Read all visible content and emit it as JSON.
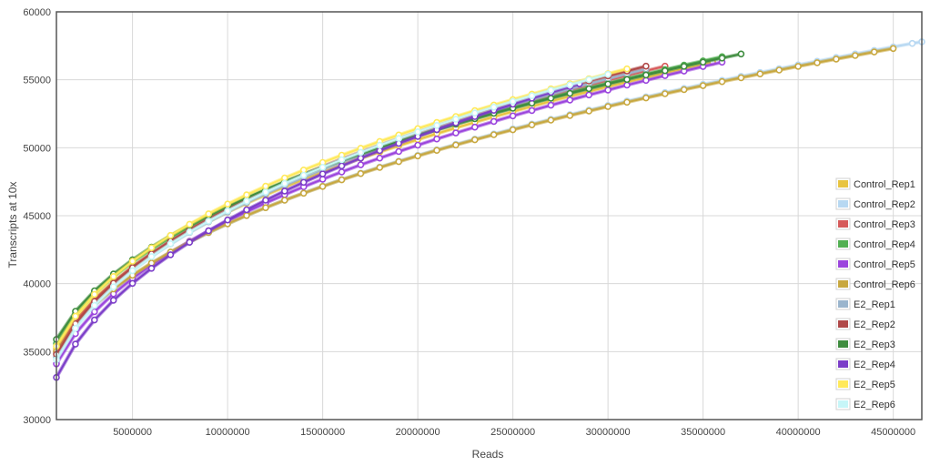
{
  "chart_data": {
    "type": "line",
    "xlabel": "Reads",
    "ylabel": "Transcripts at 10x",
    "xlim": [
      1000000,
      46500000
    ],
    "ylim": [
      30000,
      60000
    ],
    "x_ticks": [
      5000000,
      10000000,
      15000000,
      20000000,
      25000000,
      30000000,
      35000000,
      40000000,
      45000000
    ],
    "y_ticks": [
      30000,
      35000,
      40000,
      45000,
      50000,
      55000,
      60000
    ],
    "x_tick_labels": [
      "5000000",
      "10000000",
      "15000000",
      "20000000",
      "25000000",
      "30000000",
      "35000000",
      "40000000",
      "45000000"
    ],
    "y_tick_labels": [
      "30000",
      "35000",
      "40000",
      "45000",
      "50000",
      "55000",
      "60000"
    ],
    "grid": true,
    "legend_position": "right",
    "series": [
      {
        "name": "Control_Rep1",
        "color": "#e8c440",
        "x_end": 35500000,
        "y_first": 35200,
        "y_end": 56300
      },
      {
        "name": "Control_Rep2",
        "color": "#b7d8f2",
        "x_end": 46500000,
        "y_first": 34900,
        "y_end": 57800
      },
      {
        "name": "Control_Rep3",
        "color": "#d65a5a",
        "x_end": 33000000,
        "y_first": 35000,
        "y_end": 56000
      },
      {
        "name": "Control_Rep4",
        "color": "#52b052",
        "x_end": 36000000,
        "y_first": 35600,
        "y_end": 56700
      },
      {
        "name": "Control_Rep5",
        "color": "#9b45dd",
        "x_end": 36000000,
        "y_first": 34100,
        "y_end": 56300
      },
      {
        "name": "Control_Rep6",
        "color": "#c8a840",
        "x_end": 45000000,
        "y_first": 35000,
        "y_end": 57300
      },
      {
        "name": "E2_Rep1",
        "color": "#9ab5cd",
        "x_end": 32000000,
        "y_first": 34600,
        "y_end": 55800
      },
      {
        "name": "E2_Rep2",
        "color": "#b04848",
        "x_end": 32000000,
        "y_first": 34800,
        "y_end": 56000
      },
      {
        "name": "E2_Rep3",
        "color": "#3e8c3e",
        "x_end": 37000000,
        "y_first": 35900,
        "y_end": 56900
      },
      {
        "name": "E2_Rep4",
        "color": "#7b3dc8",
        "x_end": 28500000,
        "y_first": 33100,
        "y_end": 54700
      },
      {
        "name": "E2_Rep5",
        "color": "#ffe95a",
        "x_end": 31000000,
        "y_first": 35400,
        "y_end": 55800
      },
      {
        "name": "E2_Rep6",
        "color": "#c6f6f8",
        "x_end": 30000000,
        "y_first": 34400,
        "y_end": 55400
      }
    ],
    "grid_color": "#d8d8d8",
    "frame_color": "#555555"
  }
}
